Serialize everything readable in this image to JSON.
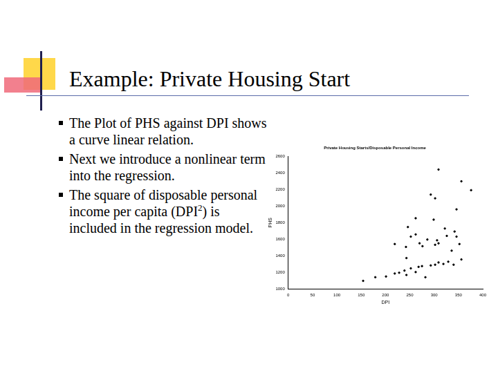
{
  "slide": {
    "title": "Example: Private Housing Start",
    "bullets": [
      [
        {
          "text": "The Plot of PHS against DPI shows a curve linear relation."
        }
      ],
      [
        {
          "text": "Next we introduce a nonlinear term into the regression."
        }
      ],
      [
        {
          "text": "The square of disposable personal income per capita (DPI"
        },
        {
          "text": "2",
          "sup": true
        },
        {
          "text": ") is included in the regression model."
        }
      ]
    ]
  },
  "chart_data": {
    "type": "scatter",
    "title": "Private Housing Starts/Disposable Personal Income",
    "x_label": "DPI",
    "y_label": "PHS",
    "x": [
      154,
      179,
      201,
      219,
      228,
      239,
      243,
      252,
      262,
      268,
      275,
      282,
      293,
      302,
      309,
      319,
      329,
      340,
      356,
      246,
      252,
      262,
      270,
      276,
      286,
      299,
      302,
      306,
      309,
      322,
      326,
      336,
      342,
      346,
      352,
      293,
      302,
      309,
      346,
      356,
      376,
      219,
      242,
      262,
      243
    ],
    "values": [
      1098,
      1142,
      1151,
      1187,
      1196,
      1222,
      1169,
      1249,
      1204,
      1267,
      1276,
      1142,
      1284,
      1293,
      1320,
      1302,
      1329,
      1293,
      1356,
      1747,
      1631,
      1658,
      1551,
      1516,
      1596,
      1836,
      1533,
      1587,
      1551,
      1729,
      1640,
      1462,
      1693,
      1631,
      1542,
      2138,
      2093,
      2440,
      1960,
      2298,
      2191,
      1542,
      1507,
      1853,
      1373
    ],
    "color": "#000000",
    "marker": "circle",
    "xlim": [
      0,
      400
    ],
    "xticks": [
      0,
      50,
      100,
      150,
      200,
      250,
      300,
      350,
      400
    ],
    "ylim": [
      1000,
      2600
    ],
    "yticks": [
      1000,
      1200,
      1400,
      1600,
      1800,
      2000,
      2200,
      2400,
      2600
    ],
    "grid": false
  }
}
